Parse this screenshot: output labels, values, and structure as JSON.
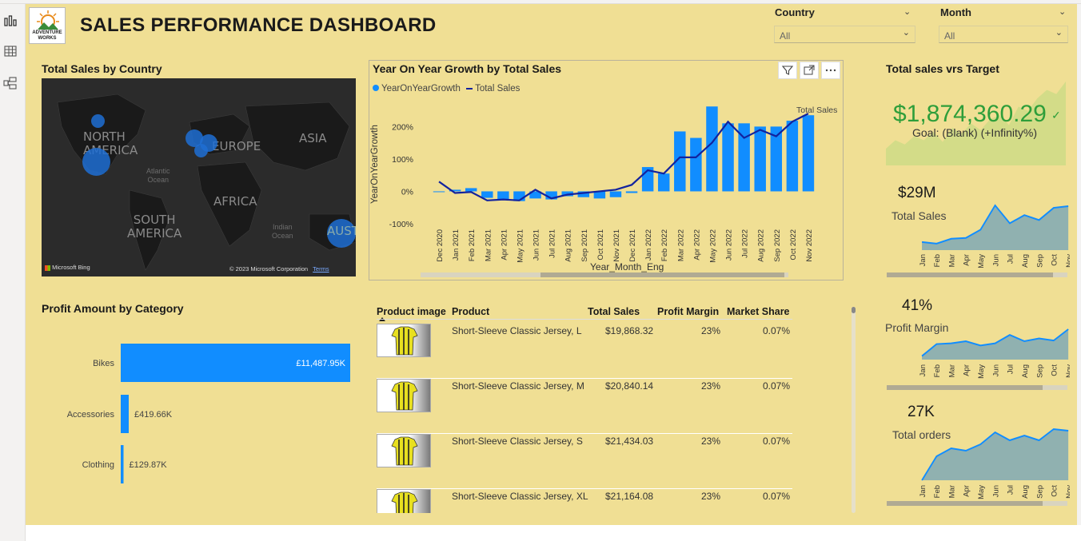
{
  "header": {
    "title": "SALES PERFORMANCE DASHBOARD",
    "logo_text_1": "ADVENTURE",
    "logo_text_2": "WORKS"
  },
  "slicers": {
    "country": {
      "label": "Country",
      "value": "All"
    },
    "month": {
      "label": "Month",
      "value": "All"
    }
  },
  "map": {
    "title": "Total Sales by Country",
    "labels": {
      "north_america": "NORTH\nAMERICA",
      "europe": "EUROPE",
      "asia": "ASIA",
      "africa": "AFRICA",
      "south_america": "SOUTH\nAMERICA",
      "atlantic": "Atlantic\nOcean",
      "indian": "Indian\nOcean",
      "aust": "AUST"
    },
    "bing": "Microsoft Bing",
    "copyright": "© 2023 Microsoft Corporation",
    "terms": "Terms"
  },
  "yoy": {
    "title": "Year On Year Growth by Total Sales",
    "legend": [
      "YearOnYearGrowth",
      "Total Sales"
    ],
    "series_right_label": "Total Sales",
    "ylabel": "YearOnYearGrowth",
    "xlabel": "Year_Month_Eng"
  },
  "chart_data": [
    {
      "type": "bar",
      "title": "Year On Year Growth by Total Sales",
      "xlabel": "Year_Month_Eng",
      "ylabel": "YearOnYearGrowth",
      "yticks": [
        "200%",
        "100%",
        "0%",
        "-100%"
      ],
      "ylim": [
        -100,
        270
      ],
      "categories": [
        "Dec 2020",
        "Jan 2021",
        "Feb 2021",
        "Mar 2021",
        "Apr 2021",
        "May 2021",
        "Jun 2021",
        "Jul 2021",
        "Aug 2021",
        "Sep 2021",
        "Oct 2021",
        "Nov 2021",
        "Dec 2021",
        "Jan 2022",
        "Feb 2022",
        "Mar 2022",
        "Apr 2022",
        "May 2022",
        "Jun 2022",
        "Jul 2022",
        "Aug 2022",
        "Sep 2022",
        "Oct 2022",
        "Nov 2022"
      ],
      "series": [
        {
          "name": "YearOnYearGrowth",
          "values": [
            0,
            5,
            10,
            -20,
            -25,
            -30,
            -22,
            -25,
            -15,
            -18,
            -22,
            -18,
            -5,
            75,
            55,
            185,
            165,
            262,
            210,
            210,
            200,
            200,
            218,
            235
          ]
        },
        {
          "name": "Total Sales",
          "values": [
            30,
            -5,
            -2,
            -28,
            -25,
            -28,
            5,
            -22,
            -10,
            -5,
            0,
            5,
            20,
            65,
            55,
            105,
            105,
            150,
            215,
            165,
            190,
            170,
            215,
            240
          ]
        }
      ]
    },
    {
      "type": "bar",
      "title": "Profit Amount by Category",
      "categories": [
        "Bikes",
        "Accessories",
        "Clothing"
      ],
      "values": [
        11487.95,
        419.66,
        129.87
      ],
      "data_labels": [
        "£11,487.95K",
        "£419.66K",
        "£129.87K"
      ]
    },
    {
      "type": "area",
      "title": "Total sales vrs Target",
      "values": [
        20,
        30,
        25,
        35,
        30,
        40,
        28,
        45,
        38,
        50,
        42,
        55,
        60,
        48,
        70,
        65,
        80,
        90,
        85,
        100
      ]
    },
    {
      "type": "area",
      "title": "Total Sales",
      "categories": [
        "Jan",
        "Feb",
        "Mar",
        "Apr",
        "May",
        "Jun",
        "Jul",
        "Aug",
        "Sep",
        "Oct",
        "Nov"
      ],
      "values": [
        10,
        8,
        14,
        15,
        25,
        55,
        33,
        43,
        37,
        52,
        54
      ]
    },
    {
      "type": "area",
      "title": "Profit Margin",
      "categories": [
        "Jan",
        "Feb",
        "Mar",
        "Apr",
        "May",
        "Jun",
        "Jul",
        "Aug",
        "Sep",
        "Oct",
        "Nov"
      ],
      "values": [
        5,
        22,
        23,
        26,
        20,
        23,
        35,
        26,
        30,
        27,
        43
      ]
    },
    {
      "type": "area",
      "title": "Total orders",
      "categories": [
        "Jan",
        "Feb",
        "Mar",
        "Apr",
        "May",
        "Jun",
        "Jul",
        "Aug",
        "Sep",
        "Oct",
        "Nov"
      ],
      "values": [
        0,
        30,
        40,
        37,
        45,
        60,
        50,
        56,
        50,
        64,
        62
      ]
    }
  ],
  "profit": {
    "title": "Profit Amount by Category"
  },
  "table": {
    "headers": [
      "Product image",
      "Product",
      "Total Sales",
      "Profit Margin",
      "Market Share"
    ],
    "rows": [
      {
        "product": "Short-Sleeve Classic Jersey, L",
        "sales": "$19,868.32",
        "margin": "23%",
        "share": "0.07%"
      },
      {
        "product": "Short-Sleeve Classic Jersey, M",
        "sales": "$20,840.14",
        "margin": "23%",
        "share": "0.07%"
      },
      {
        "product": "Short-Sleeve Classic Jersey, S",
        "sales": "$21,434.03",
        "margin": "23%",
        "share": "0.07%"
      },
      {
        "product": "Short-Sleeve Classic Jersey, XL",
        "sales": "$21,164.08",
        "margin": "23%",
        "share": "0.07%"
      }
    ]
  },
  "kpis": {
    "target": {
      "title": "Total sales vrs Target",
      "value": "$1,874,360.29",
      "goal": "Goal: (Blank) (+Infinity%)",
      "color": "#2e9e3a"
    },
    "sales": {
      "value": "$29M",
      "label": "Total Sales"
    },
    "margin": {
      "value": "41%",
      "label": "Profit Margin"
    },
    "orders": {
      "value": "27K",
      "label": "Total orders"
    }
  },
  "colors": {
    "canvas": "#f0df94",
    "bar": "#118dff",
    "line": "#12239e",
    "area": "#7fa9b5"
  }
}
